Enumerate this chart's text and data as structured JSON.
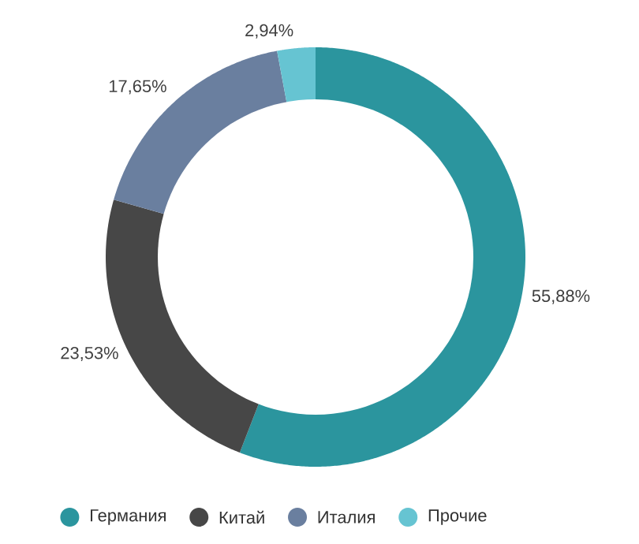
{
  "chart_data": {
    "type": "donut",
    "categories": [
      "Германия",
      "Китай",
      "Италия",
      "Прочие"
    ],
    "values": [
      55.88,
      23.53,
      17.65,
      2.94
    ],
    "colors": [
      "#2b959e",
      "#474747",
      "#6a7f9f",
      "#66c4d2"
    ],
    "value_labels": [
      "55,88%",
      "23,53%",
      "17,65%",
      "2,94%"
    ],
    "legend": "bottom"
  }
}
